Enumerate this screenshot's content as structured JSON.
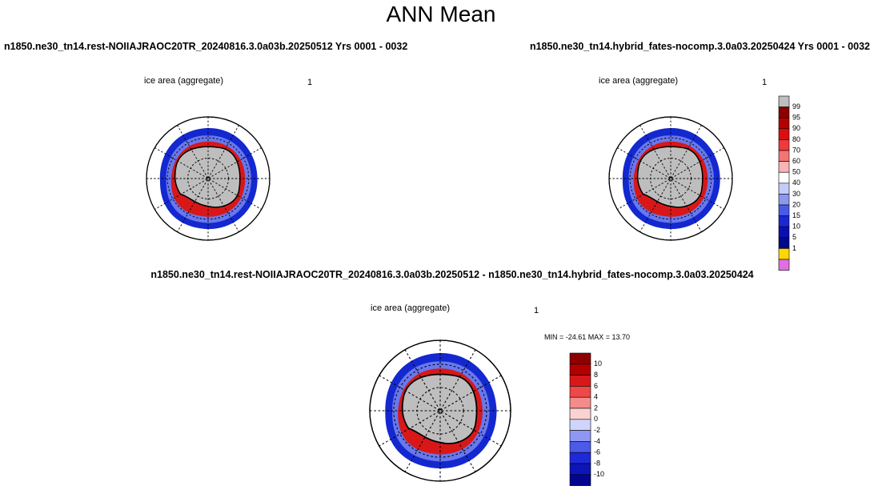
{
  "header": {
    "title": "ANN Mean"
  },
  "panels": [
    {
      "title": "n1850.ne30_tn14.rest-NOIIAJRAOC20TR_20240816.3.0a03b.20250512  Yrs 0001 - 0032",
      "label": "ice area  (aggregate)",
      "number": "1"
    },
    {
      "title": "n1850.ne30_tn14.hybrid_fates-nocomp.3.0a03.20250424  Yrs 0001 - 0032",
      "label": "ice area  (aggregate)",
      "number": "1"
    },
    {
      "title": "n1850.ne30_tn14.rest-NOIIAJRAOC20TR_20240816.3.0a03b.20250512 - n1850.ne30_tn14.hybrid_fates-nocomp.3.0a03.20250424",
      "label": "ice area  (aggregate)",
      "number": "1",
      "stats": "MIN = -24.61 MAX =  13.70"
    }
  ],
  "colorbars": [
    {
      "labels": [
        99,
        95,
        90,
        80,
        70,
        60,
        50,
        40,
        30,
        20,
        15,
        10,
        5,
        1
      ],
      "colors": [
        "#bebebe",
        "#8b0000",
        "#b40000",
        "#d81010",
        "#ee3a3a",
        "#f47474",
        "#f9b4b4",
        "#ffffff",
        "#c4ccf8",
        "#8c98f0",
        "#4a5ae6",
        "#1a28d2",
        "#0a10b0",
        "#00088a",
        "#ffd700",
        "#e070e0"
      ]
    },
    {
      "labels": [
        10,
        8,
        6,
        4,
        2,
        0,
        -2,
        -4,
        -6,
        -8,
        -10
      ],
      "colors": [
        "#8b0000",
        "#b00000",
        "#d81818",
        "#ee4848",
        "#f48c8c",
        "#fbd2d2",
        "#cfd4fa",
        "#8e98f2",
        "#4c5ae8",
        "#1e2ad8",
        "#0c16b8",
        "#02068f"
      ]
    }
  ]
}
